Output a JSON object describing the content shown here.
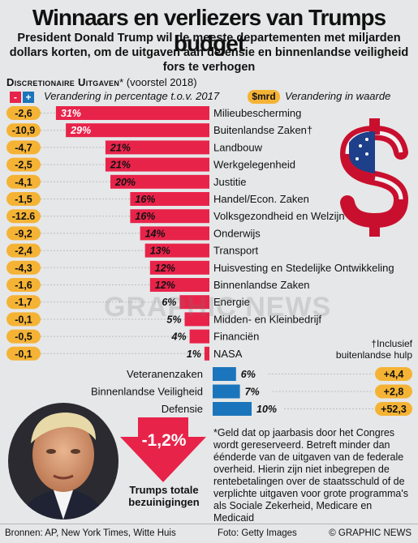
{
  "title": "Winnaars en verliezers van Trumps budget",
  "subtitle": "President Donald Trump wil de meeste departementen met miljarden dollars korten, om de uitgaven aan defensie en binnenlandse veiligheid fors te verhogen",
  "section": {
    "bold": "Discretionaire Uitgaven",
    "rest": "* (voorstel 2018)"
  },
  "legend": {
    "minus": "-",
    "plus": "+",
    "pct_label": "Verandering in percentage t.o.v. 2017",
    "mrd_badge": "$mrd",
    "value_label": "Verandering in waarde"
  },
  "colors": {
    "cut": "#e8234a",
    "increase": "#1b75bc",
    "badge": "#f5b335"
  },
  "chart_data": {
    "type": "bar",
    "title": "Discretionaire Uitgaven* (voorstel 2018)",
    "unit": "%",
    "cuts": [
      {
        "name": "Milieubescherming",
        "pct": 31,
        "pct_label": "31%",
        "mrd": "-2,6"
      },
      {
        "name": "Buitenlandse Zaken†",
        "pct": 29,
        "pct_label": "29%",
        "mrd": "-10,9"
      },
      {
        "name": "Landbouw",
        "pct": 21,
        "pct_label": "21%",
        "mrd": "-4,7"
      },
      {
        "name": "Werkgelegenheid",
        "pct": 21,
        "pct_label": "21%",
        "mrd": "-2,5"
      },
      {
        "name": "Justitie",
        "pct": 20,
        "pct_label": "20%",
        "mrd": "-4,1"
      },
      {
        "name": "Handel/Econ. Zaken",
        "pct": 16,
        "pct_label": "16%",
        "mrd": "-1,5"
      },
      {
        "name": "Volksgezondheid en Welzijn",
        "pct": 16,
        "pct_label": "16%",
        "mrd": "-12.6"
      },
      {
        "name": "Onderwijs",
        "pct": 14,
        "pct_label": "14%",
        "mrd": "-9,2"
      },
      {
        "name": "Transport",
        "pct": 13,
        "pct_label": "13%",
        "mrd": "-2,4"
      },
      {
        "name": "Huisvesting en Stedelijke Ontwikkeling",
        "pct": 12,
        "pct_label": "12%",
        "mrd": "-4,3"
      },
      {
        "name": "Binnenlandse Zaken",
        "pct": 12,
        "pct_label": "12%",
        "mrd": "-1,6"
      },
      {
        "name": "Energie",
        "pct": 6,
        "pct_label": "6%",
        "mrd": "-1,7"
      },
      {
        "name": "Midden- en Kleinbedrijf",
        "pct": 5,
        "pct_label": "5%",
        "mrd": "-0,1"
      },
      {
        "name": "Financiën",
        "pct": 4,
        "pct_label": "4%",
        "mrd": "-0,5"
      },
      {
        "name": "NASA",
        "pct": 1,
        "pct_label": "1%",
        "mrd": "-0,1"
      }
    ],
    "increases": [
      {
        "name": "Veteranenzaken",
        "pct": 6,
        "pct_label": "6%",
        "mrd": "+4,4"
      },
      {
        "name": "Binnenlandse Veiligheid",
        "pct": 7,
        "pct_label": "7%",
        "mrd": "+2,8"
      },
      {
        "name": "Defensie",
        "pct": 10,
        "pct_label": "10%",
        "mrd": "+52,3"
      }
    ]
  },
  "footnote_intl": "†Inclusief buitenlandse hulp",
  "note": "*Geld dat op jaarbasis door het Congres wordt gereserveerd. Betreft minder dan éénderde van de uitgaven van de federale overheid. Hierin zijn niet inbegrepen de rentebetalingen over de staatsschuld of de verplichte uitgaven voor grote programma's als Sociale Zekerheid, Medicare en Medicaid",
  "total": {
    "value": "-1,2%",
    "label": "Trumps totale bezuinigingen"
  },
  "watermark": "GRAPHIC NEWS",
  "footer": {
    "sources": "Bronnen: AP, New York Times, Witte Huis",
    "photo": "Foto: Getty Images",
    "copyright": "© GRAPHIC NEWS"
  },
  "icons": {
    "dollar": "dollar-flag-icon",
    "photo": "trump-portrait"
  }
}
